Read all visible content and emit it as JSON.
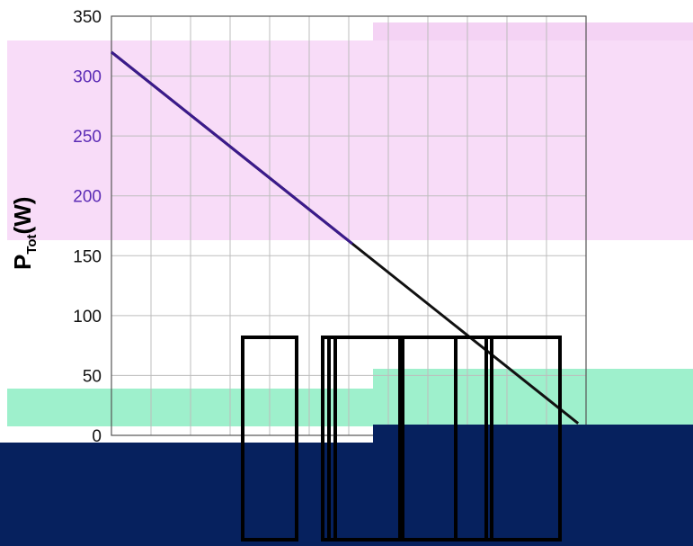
{
  "chart_data": {
    "type": "line",
    "title": "",
    "xlabel": "",
    "ylabel": {
      "main": "P",
      "subscript": "Tot",
      "unit": "(W)"
    },
    "ylim": [
      0,
      350
    ],
    "y_ticks": [
      "0",
      "50",
      "100",
      "150",
      "200",
      "250",
      "300",
      "350"
    ],
    "xlim": [
      0,
      600
    ],
    "grid": true,
    "series": [
      {
        "values_x": [
          0,
          590
        ],
        "values_y": [
          320,
          10
        ],
        "color": "#111111"
      }
    ],
    "colors": {
      "line_upper": "#3b1a8c",
      "tick_upper": "#5b2bb5",
      "band_pink": "#f7d8f7",
      "band_green": "#9ef0cc",
      "band_navy": "#06215e",
      "grid": "#bdbdbd"
    }
  }
}
